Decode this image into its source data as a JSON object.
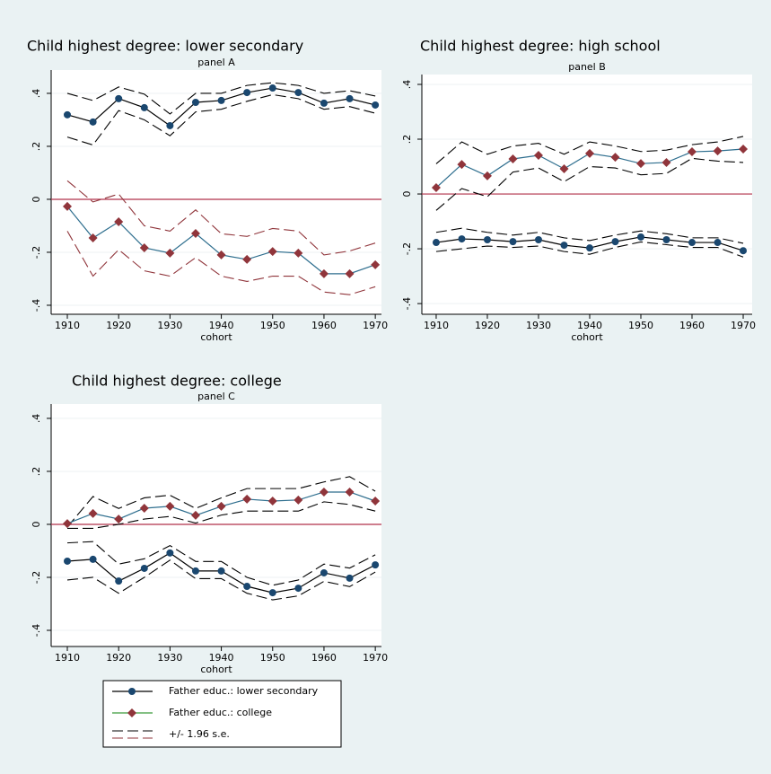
{
  "chart_data": [
    {
      "type": "line",
      "title": "Child highest degree: lower secondary",
      "subtitle": "panel A",
      "x_label": "cohort",
      "x": [
        1910,
        1915,
        1920,
        1925,
        1930,
        1935,
        1940,
        1945,
        1950,
        1955,
        1960,
        1965,
        1970
      ],
      "xlim": [
        1906.85,
        1971.2
      ],
      "xticks": [
        1910,
        1920,
        1930,
        1940,
        1950,
        1960,
        1970
      ],
      "ylim": [
        -0.434,
        0.488
      ],
      "yticks": [
        {
          "value": 0.4,
          "label": ".4"
        },
        {
          "value": 0.2,
          "label": ".2"
        },
        0,
        {
          "value": -0.2,
          "label": "-.2"
        },
        {
          "value": -0.4,
          "label": "-.4"
        }
      ],
      "reference_line": 0,
      "grid": true,
      "series": [
        {
          "color": "#000000",
          "marker": "circle",
          "marker_color": "#1a476f",
          "ci_color": "#000000",
          "values": [
            0.319,
            0.292,
            0.38,
            0.346,
            0.278,
            0.366,
            0.373,
            0.403,
            0.42,
            0.403,
            0.363,
            0.38,
            0.356
          ],
          "upper": [
            0.4,
            0.373,
            0.424,
            0.397,
            0.322,
            0.4,
            0.4,
            0.43,
            0.44,
            0.43,
            0.4,
            0.41,
            0.39
          ],
          "lower": [
            0.235,
            0.205,
            0.335,
            0.3,
            0.24,
            0.33,
            0.34,
            0.37,
            0.395,
            0.38,
            0.34,
            0.35,
            0.325
          ]
        },
        {
          "color": "#2e6e8e",
          "marker": "diamond",
          "marker_color": "#90353b",
          "ci_color": "#90353b",
          "values": [
            -0.027,
            -0.146,
            -0.085,
            -0.183,
            -0.203,
            -0.129,
            -0.21,
            -0.227,
            -0.197,
            -0.203,
            -0.281,
            -0.281,
            -0.247
          ],
          "upper": [
            0.07,
            -0.01,
            0.02,
            -0.1,
            -0.12,
            -0.04,
            -0.13,
            -0.14,
            -0.11,
            -0.12,
            -0.21,
            -0.195,
            -0.165
          ],
          "lower": [
            -0.12,
            -0.29,
            -0.19,
            -0.27,
            -0.29,
            -0.22,
            -0.29,
            -0.31,
            -0.29,
            -0.29,
            -0.35,
            -0.36,
            -0.33
          ]
        }
      ]
    },
    {
      "type": "line",
      "title": "Child highest degree: high school",
      "subtitle": "panel B",
      "x_label": "cohort",
      "x": [
        1910,
        1915,
        1920,
        1925,
        1930,
        1935,
        1940,
        1945,
        1950,
        1955,
        1960,
        1965,
        1970
      ],
      "xlim": [
        1907.2,
        1971.75
      ],
      "xticks": [
        1910,
        1920,
        1930,
        1940,
        1950,
        1960,
        1970
      ],
      "ylim": [
        -0.439,
        0.436
      ],
      "yticks": [
        {
          "value": 0.4,
          "label": ".4"
        },
        {
          "value": 0.2,
          "label": ".2"
        },
        0,
        {
          "value": -0.2,
          "label": "-.2"
        },
        {
          "value": -0.4,
          "label": "-.4"
        }
      ],
      "reference_line": 0,
      "grid": true,
      "series": [
        {
          "color": "#000000",
          "marker": "circle",
          "marker_color": "#1a476f",
          "ci_color": "#000000",
          "values": [
            -0.177,
            -0.164,
            -0.167,
            -0.174,
            -0.167,
            -0.187,
            -0.197,
            -0.174,
            -0.157,
            -0.167,
            -0.177,
            -0.177,
            -0.207
          ],
          "upper": [
            -0.14,
            -0.125,
            -0.14,
            -0.15,
            -0.14,
            -0.16,
            -0.17,
            -0.15,
            -0.135,
            -0.145,
            -0.16,
            -0.16,
            -0.18
          ],
          "lower": [
            -0.21,
            -0.2,
            -0.19,
            -0.195,
            -0.19,
            -0.21,
            -0.22,
            -0.195,
            -0.175,
            -0.185,
            -0.195,
            -0.195,
            -0.23
          ]
        },
        {
          "color": "#2e6e8e",
          "marker": "diamond",
          "marker_color": "#90353b",
          "ci_color": "#000000",
          "values": [
            0.023,
            0.108,
            0.066,
            0.128,
            0.141,
            0.092,
            0.148,
            0.134,
            0.111,
            0.115,
            0.154,
            0.157,
            0.164
          ],
          "upper": [
            0.11,
            0.19,
            0.145,
            0.175,
            0.185,
            0.145,
            0.19,
            0.175,
            0.155,
            0.16,
            0.18,
            0.19,
            0.21
          ],
          "lower": [
            -0.06,
            0.02,
            -0.01,
            0.08,
            0.095,
            0.045,
            0.1,
            0.095,
            0.07,
            0.075,
            0.13,
            0.12,
            0.115
          ]
        }
      ]
    },
    {
      "type": "line",
      "title": "Child highest degree: college",
      "subtitle": "panel C",
      "x_label": "cohort",
      "x": [
        1910,
        1915,
        1920,
        1925,
        1930,
        1935,
        1940,
        1945,
        1950,
        1955,
        1960,
        1965,
        1970
      ],
      "xlim": [
        1906.85,
        1971.2
      ],
      "xticks": [
        1910,
        1920,
        1930,
        1940,
        1950,
        1960,
        1970
      ],
      "ylim": [
        -0.461,
        0.454
      ],
      "yticks": [
        {
          "value": 0.4,
          "label": ".4"
        },
        {
          "value": 0.2,
          "label": ".2"
        },
        0,
        {
          "value": -0.2,
          "label": "-.2"
        },
        {
          "value": -0.4,
          "label": "-.4"
        }
      ],
      "reference_line": 0,
      "grid": true,
      "series": [
        {
          "color": "#000000",
          "marker": "circle",
          "marker_color": "#1a476f",
          "ci_color": "#000000",
          "values": [
            -0.139,
            -0.132,
            -0.214,
            -0.166,
            -0.108,
            -0.176,
            -0.176,
            -0.234,
            -0.258,
            -0.241,
            -0.183,
            -0.203,
            -0.153
          ],
          "upper": [
            -0.07,
            -0.065,
            -0.15,
            -0.13,
            -0.08,
            -0.14,
            -0.14,
            -0.2,
            -0.23,
            -0.21,
            -0.15,
            -0.165,
            -0.115
          ],
          "lower": [
            -0.21,
            -0.2,
            -0.26,
            -0.2,
            -0.135,
            -0.205,
            -0.205,
            -0.26,
            -0.285,
            -0.27,
            -0.215,
            -0.235,
            -0.18
          ]
        },
        {
          "color": "#2e6e8e",
          "marker": "diamond",
          "marker_color": "#90353b",
          "ci_color": "#000000",
          "values": [
            0.003,
            0.041,
            0.02,
            0.061,
            0.068,
            0.034,
            0.068,
            0.095,
            0.088,
            0.092,
            0.122,
            0.122,
            0.088
          ],
          "upper": [
            -0.01,
            0.105,
            0.06,
            0.1,
            0.11,
            0.06,
            0.1,
            0.135,
            0.135,
            0.135,
            0.16,
            0.18,
            0.125
          ],
          "lower": [
            -0.015,
            -0.015,
            0,
            0.02,
            0.03,
            0.005,
            0.035,
            0.05,
            0.05,
            0.05,
            0.085,
            0.075,
            0.05
          ]
        }
      ]
    }
  ],
  "legend": {
    "entries": [
      {
        "label": "Father educ.: lower secondary",
        "color": "#000000",
        "marker": "circle",
        "marker_color": "#1a476f"
      },
      {
        "label": "Father educ.: college",
        "color": "#3a9a3a",
        "marker": "diamond",
        "marker_color": "#90353b"
      },
      {
        "label": "+/- 1.96 s.e.",
        "color": "#000000",
        "color2": "#90353b"
      }
    ]
  }
}
